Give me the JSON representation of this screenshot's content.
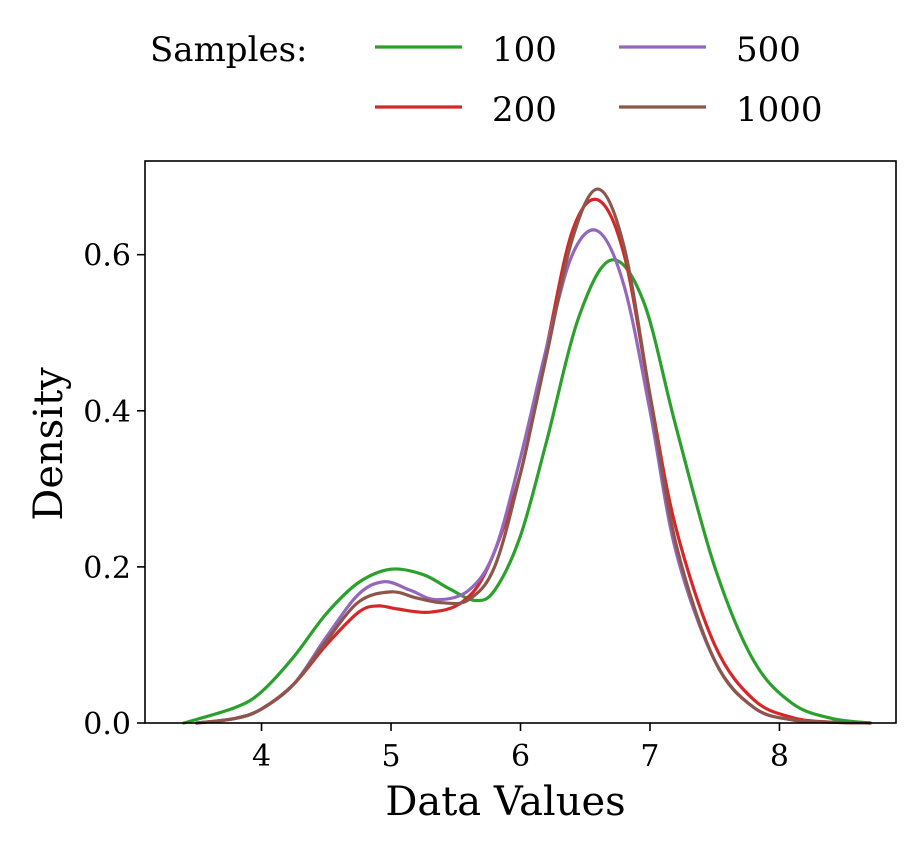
{
  "chart_data": {
    "type": "line",
    "xlabel": "Data Values",
    "ylabel": "Density",
    "xlim": [
      3.1,
      8.9
    ],
    "ylim": [
      0.0,
      0.72
    ],
    "xticks": [
      4,
      5,
      6,
      7,
      8
    ],
    "yticks": [
      0.0,
      0.2,
      0.4,
      0.6
    ],
    "xtick_labels": [
      "4",
      "5",
      "6",
      "7",
      "8"
    ],
    "ytick_labels": [
      "0.0",
      "0.2",
      "0.4",
      "0.6"
    ],
    "grid": false,
    "legend": {
      "title": "Samples:",
      "placement": "top"
    },
    "series": [
      {
        "name": "100",
        "color": "#2ca02c",
        "x": [
          3.4,
          3.8,
          4.0,
          4.25,
          4.5,
          4.75,
          5.0,
          5.25,
          5.45,
          5.65,
          5.8,
          6.0,
          6.2,
          6.45,
          6.7,
          6.95,
          7.2,
          7.5,
          7.8,
          8.1,
          8.4,
          8.7
        ],
        "y": [
          0.0,
          0.02,
          0.04,
          0.085,
          0.14,
          0.18,
          0.197,
          0.19,
          0.172,
          0.157,
          0.17,
          0.24,
          0.36,
          0.52,
          0.593,
          0.54,
          0.38,
          0.2,
          0.08,
          0.025,
          0.006,
          0.0
        ]
      },
      {
        "name": "200",
        "color": "#d62728",
        "x": [
          3.5,
          3.8,
          4.0,
          4.25,
          4.5,
          4.75,
          4.9,
          5.05,
          5.3,
          5.55,
          5.75,
          6.0,
          6.2,
          6.4,
          6.6,
          6.8,
          7.0,
          7.2,
          7.5,
          7.8,
          8.1,
          8.4,
          8.7
        ],
        "y": [
          0.0,
          0.006,
          0.018,
          0.05,
          0.1,
          0.142,
          0.15,
          0.146,
          0.142,
          0.155,
          0.2,
          0.32,
          0.48,
          0.63,
          0.67,
          0.6,
          0.42,
          0.25,
          0.1,
          0.03,
          0.007,
          0.001,
          0.0
        ]
      },
      {
        "name": "500",
        "color": "#9467bd",
        "x": [
          3.5,
          3.8,
          4.0,
          4.25,
          4.5,
          4.75,
          4.95,
          5.15,
          5.35,
          5.6,
          5.8,
          6.0,
          6.2,
          6.4,
          6.6,
          6.8,
          7.0,
          7.2,
          7.5,
          7.8,
          8.1,
          8.4,
          8.7
        ],
        "y": [
          0.0,
          0.006,
          0.018,
          0.05,
          0.11,
          0.165,
          0.181,
          0.17,
          0.158,
          0.17,
          0.22,
          0.34,
          0.48,
          0.6,
          0.63,
          0.56,
          0.4,
          0.22,
          0.08,
          0.02,
          0.004,
          0.001,
          0.0
        ]
      },
      {
        "name": "1000",
        "color": "#8c564b",
        "x": [
          3.5,
          3.8,
          4.0,
          4.25,
          4.5,
          4.75,
          5.0,
          5.2,
          5.4,
          5.6,
          5.8,
          6.0,
          6.2,
          6.4,
          6.6,
          6.8,
          7.0,
          7.2,
          7.5,
          7.8,
          8.1,
          8.4,
          8.7
        ],
        "y": [
          0.0,
          0.006,
          0.018,
          0.05,
          0.105,
          0.155,
          0.168,
          0.16,
          0.154,
          0.158,
          0.2,
          0.32,
          0.47,
          0.62,
          0.684,
          0.61,
          0.42,
          0.23,
          0.08,
          0.02,
          0.004,
          0.001,
          0.0
        ]
      }
    ]
  }
}
